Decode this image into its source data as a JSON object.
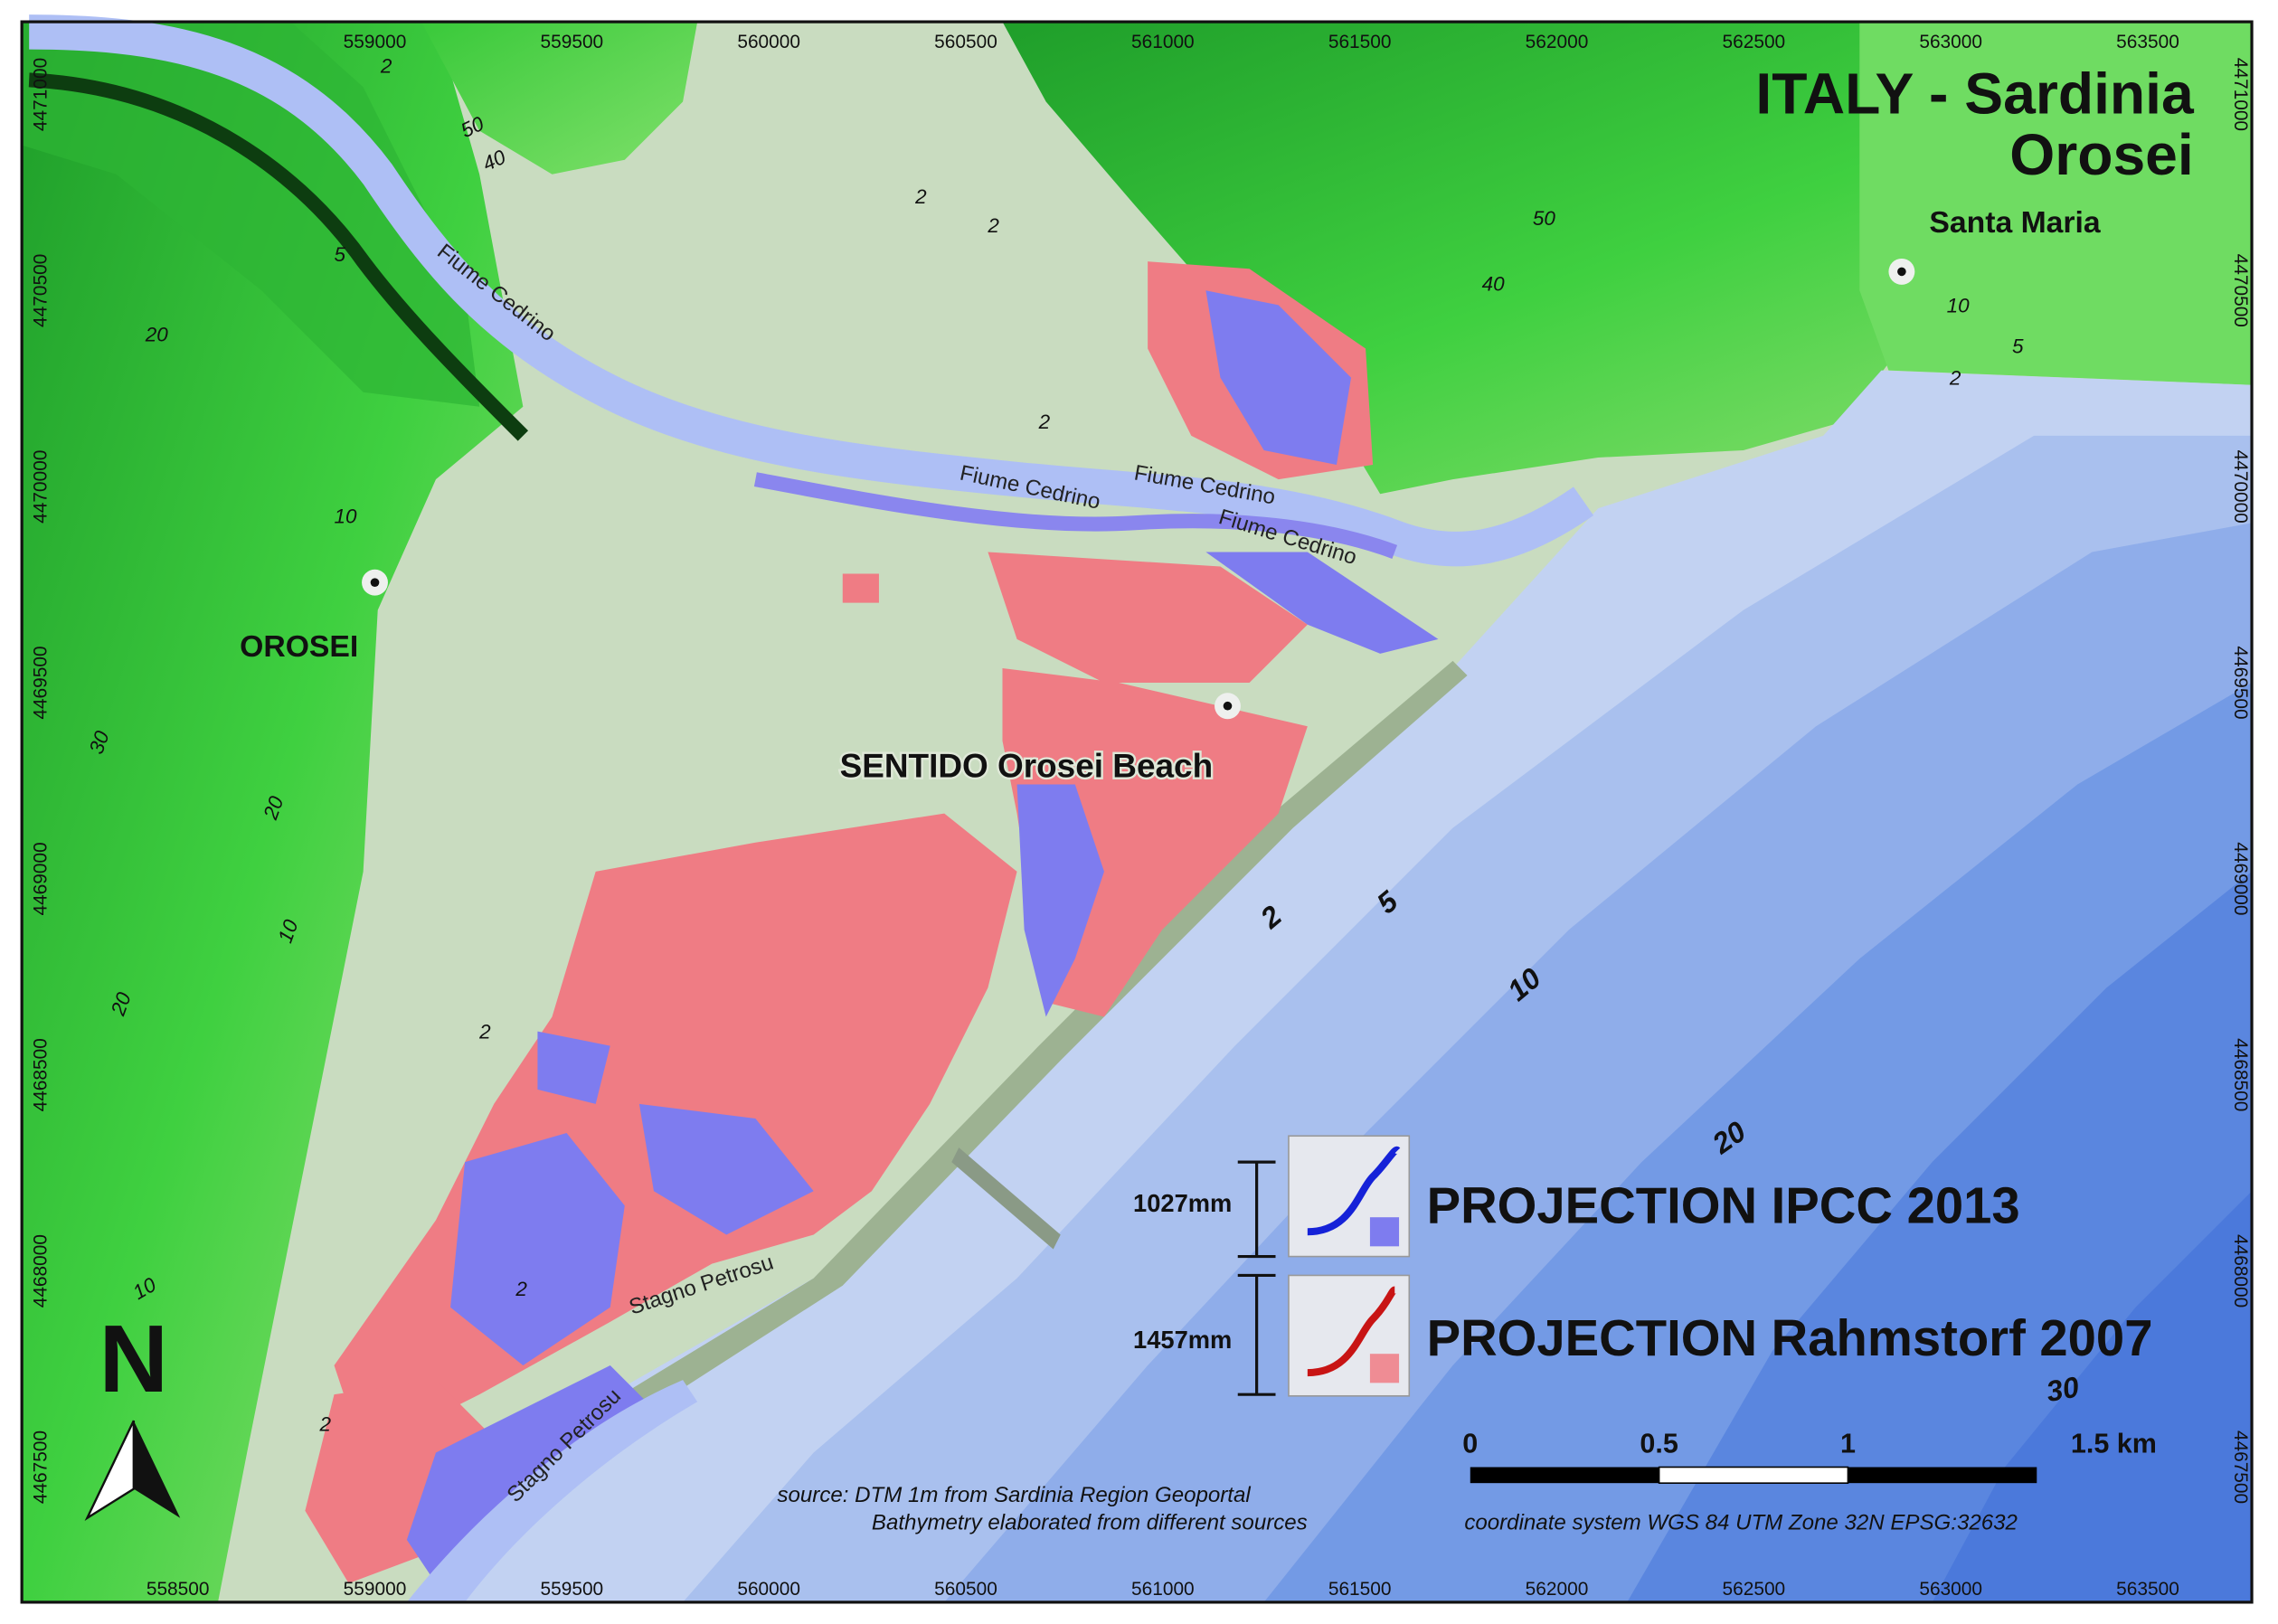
{
  "title": {
    "line1": "ITALY - Sardinia",
    "line2": "Orosei"
  },
  "places": [
    {
      "label": "Santa Maria"
    },
    {
      "label": "OROSEI"
    },
    {
      "label": "SENTIDO Orosei Beach"
    }
  ],
  "water_labels": [
    "Fiume Cedrino",
    "Fiume Cedrino",
    "Fiume Cedrino",
    "Fiume Cedrino",
    "Stagno Petrosu",
    "Stagno Petrosu"
  ],
  "depth_labels": [
    "2",
    "5",
    "10",
    "20",
    "30"
  ],
  "land_contour_labels": [
    "50",
    "40",
    "20",
    "10",
    "5",
    "2",
    "2",
    "2",
    "2",
    "20",
    "10",
    "30",
    "20",
    "10",
    "2",
    "2",
    "2",
    "50",
    "40",
    "10",
    "5",
    "2"
  ],
  "grid": {
    "x_top": [
      559000,
      559500,
      560000,
      560500,
      561000,
      561500,
      562000,
      562500,
      563000,
      563500
    ],
    "x_bottom": [
      558500,
      559000,
      559500,
      560000,
      560500,
      561000,
      561500,
      562000,
      562500,
      563000,
      563500
    ],
    "y_left": [
      4471000,
      4470500,
      4470000,
      4469500,
      4469000,
      4468500,
      4468000,
      4467500
    ],
    "y_right": [
      4471000,
      4470500,
      4470000,
      4469500,
      4469000,
      4468500,
      4468000,
      4467500
    ]
  },
  "legend": [
    {
      "amount": "1027mm",
      "label": "PROJECTION IPCC 2013"
    },
    {
      "amount": "1457mm",
      "label": "PROJECTION Rahmstorf 2007"
    }
  ],
  "scale_bar": {
    "labels": [
      "0",
      "0.5",
      "1",
      "1.5 km"
    ]
  },
  "source": {
    "line1": "source: DTM 1m from Sardinia Region Geoportal",
    "line2": "Bathymetry elaborated from different sources"
  },
  "crs": "coordinate system WGS 84 UTM Zone 32N EPSG:32632",
  "north": "N"
}
